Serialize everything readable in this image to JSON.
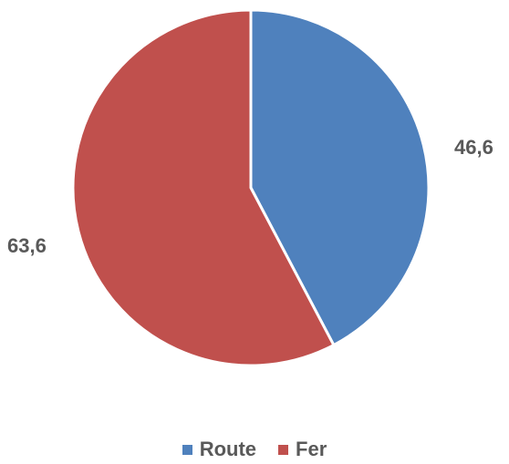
{
  "chart_data": {
    "type": "pie",
    "categories": [
      "Route",
      "Fer"
    ],
    "values": [
      46.6,
      63.6
    ],
    "value_labels": [
      "46,6",
      "63,6"
    ],
    "colors": [
      "#4F81BD",
      "#C0504D"
    ],
    "start_angle_deg": 0,
    "direction": "clockwise",
    "legend_position": "bottom",
    "title": ""
  }
}
